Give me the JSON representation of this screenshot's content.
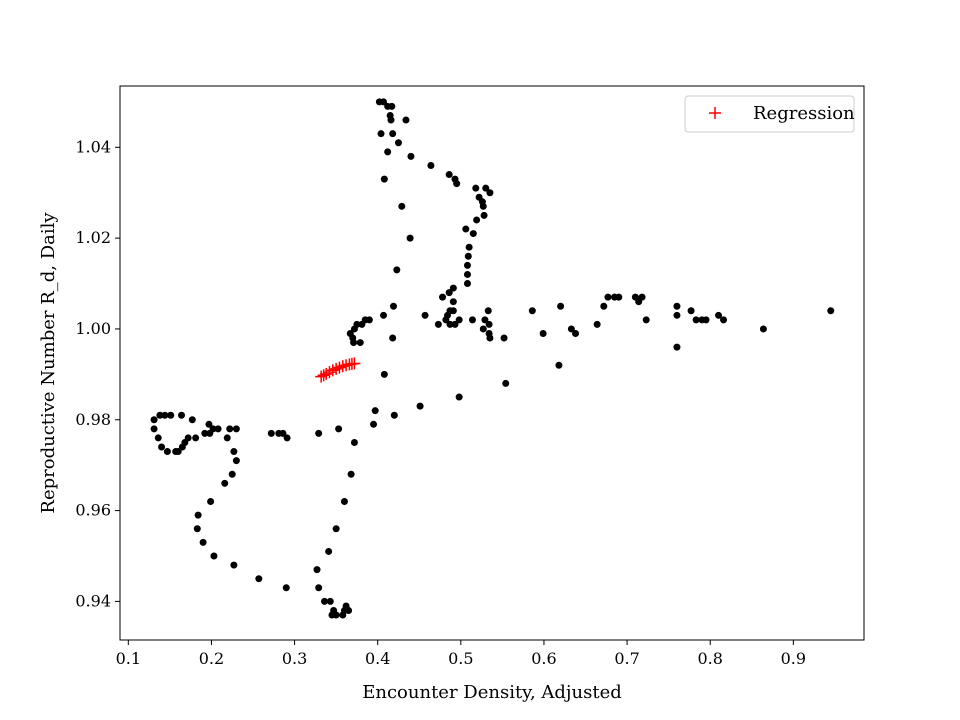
{
  "chart_data": {
    "type": "scatter",
    "xlabel": "Encounter Density, Adjusted",
    "ylabel": "Reproductive Number R_d, Daily",
    "xlim": [
      0.09,
      0.985
    ],
    "ylim": [
      0.9315,
      1.0535
    ],
    "xticks": [
      0.1,
      0.2,
      0.3,
      0.4,
      0.5,
      0.6,
      0.7,
      0.8,
      0.9
    ],
    "xtick_labels": [
      "0.1",
      "0.2",
      "0.3",
      "0.4",
      "0.5",
      "0.6",
      "0.7",
      "0.8",
      "0.9"
    ],
    "yticks": [
      0.94,
      0.96,
      0.98,
      1.0,
      1.02,
      1.04
    ],
    "ytick_labels": [
      "0.94",
      "0.96",
      "0.98",
      "1.00",
      "1.02",
      "1.04"
    ],
    "grid": false,
    "legend": {
      "position": "top-right",
      "entries": [
        "Regression"
      ]
    },
    "series": [
      {
        "marker": "dot",
        "color": "#000000",
        "points": [
          [
            0.402,
            1.05
          ],
          [
            0.407,
            1.05
          ],
          [
            0.412,
            1.049
          ],
          [
            0.417,
            1.049
          ],
          [
            0.415,
            1.047
          ],
          [
            0.416,
            1.046
          ],
          [
            0.434,
            1.046
          ],
          [
            0.404,
            1.043
          ],
          [
            0.418,
            1.043
          ],
          [
            0.425,
            1.041
          ],
          [
            0.412,
            1.039
          ],
          [
            0.44,
            1.038
          ],
          [
            0.464,
            1.036
          ],
          [
            0.486,
            1.034
          ],
          [
            0.493,
            1.033
          ],
          [
            0.495,
            1.032
          ],
          [
            0.408,
            1.033
          ],
          [
            0.518,
            1.031
          ],
          [
            0.53,
            1.031
          ],
          [
            0.535,
            1.03
          ],
          [
            0.522,
            1.029
          ],
          [
            0.526,
            1.028
          ],
          [
            0.527,
            1.027
          ],
          [
            0.429,
            1.027
          ],
          [
            0.528,
            1.025
          ],
          [
            0.519,
            1.024
          ],
          [
            0.506,
            1.022
          ],
          [
            0.515,
            1.021
          ],
          [
            0.439,
            1.02
          ],
          [
            0.51,
            1.018
          ],
          [
            0.509,
            1.016
          ],
          [
            0.508,
            1.014
          ],
          [
            0.423,
            1.013
          ],
          [
            0.508,
            1.012
          ],
          [
            0.508,
            1.01
          ],
          [
            0.491,
            1.009
          ],
          [
            0.486,
            1.008
          ],
          [
            0.478,
            1.007
          ],
          [
            0.491,
            1.006
          ],
          [
            0.491,
            1.004
          ],
          [
            0.419,
            1.005
          ],
          [
            0.457,
            1.003
          ],
          [
            0.407,
            1.003
          ],
          [
            0.39,
            1.002
          ],
          [
            0.385,
            1.002
          ],
          [
            0.381,
            1.001
          ],
          [
            0.375,
            1.001
          ],
          [
            0.372,
            1.0
          ],
          [
            0.367,
            0.999
          ],
          [
            0.37,
            0.998
          ],
          [
            0.371,
            0.997
          ],
          [
            0.379,
            0.997
          ],
          [
            0.418,
            0.998
          ],
          [
            0.473,
            1.001
          ],
          [
            0.482,
            1.002
          ],
          [
            0.487,
            1.001
          ],
          [
            0.493,
            1.001
          ],
          [
            0.498,
            1.002
          ],
          [
            0.484,
            1.003
          ],
          [
            0.487,
            1.004
          ],
          [
            0.514,
            1.002
          ],
          [
            0.529,
            1.002
          ],
          [
            0.534,
            1.001
          ],
          [
            0.533,
            1.004
          ],
          [
            0.527,
            1.0
          ],
          [
            0.534,
            0.999
          ],
          [
            0.535,
            0.998
          ],
          [
            0.552,
            0.998
          ],
          [
            0.586,
            1.004
          ],
          [
            0.599,
            0.999
          ],
          [
            0.62,
            1.005
          ],
          [
            0.633,
            1.0
          ],
          [
            0.638,
            0.999
          ],
          [
            0.664,
            1.001
          ],
          [
            0.672,
            1.005
          ],
          [
            0.677,
            1.007
          ],
          [
            0.685,
            1.007
          ],
          [
            0.69,
            1.007
          ],
          [
            0.71,
            1.007
          ],
          [
            0.714,
            1.006
          ],
          [
            0.718,
            1.007
          ],
          [
            0.723,
            1.002
          ],
          [
            0.76,
            1.005
          ],
          [
            0.76,
            1.003
          ],
          [
            0.777,
            1.004
          ],
          [
            0.783,
            1.002
          ],
          [
            0.79,
            1.002
          ],
          [
            0.795,
            1.002
          ],
          [
            0.81,
            1.003
          ],
          [
            0.816,
            1.002
          ],
          [
            0.76,
            0.996
          ],
          [
            0.864,
            1.0
          ],
          [
            0.945,
            1.004
          ],
          [
            0.618,
            0.992
          ],
          [
            0.554,
            0.988
          ],
          [
            0.498,
            0.985
          ],
          [
            0.451,
            0.983
          ],
          [
            0.42,
            0.981
          ],
          [
            0.397,
            0.982
          ],
          [
            0.395,
            0.979
          ],
          [
            0.408,
            0.99
          ],
          [
            0.353,
            0.978
          ],
          [
            0.329,
            0.977
          ],
          [
            0.372,
            0.975
          ],
          [
            0.368,
            0.968
          ],
          [
            0.36,
            0.962
          ],
          [
            0.35,
            0.956
          ],
          [
            0.341,
            0.951
          ],
          [
            0.327,
            0.947
          ],
          [
            0.329,
            0.943
          ],
          [
            0.336,
            0.94
          ],
          [
            0.343,
            0.94
          ],
          [
            0.347,
            0.938
          ],
          [
            0.345,
            0.937
          ],
          [
            0.35,
            0.937
          ],
          [
            0.358,
            0.937
          ],
          [
            0.36,
            0.938
          ],
          [
            0.365,
            0.938
          ],
          [
            0.362,
            0.939
          ],
          [
            0.29,
            0.943
          ],
          [
            0.257,
            0.945
          ],
          [
            0.227,
            0.948
          ],
          [
            0.203,
            0.95
          ],
          [
            0.19,
            0.953
          ],
          [
            0.183,
            0.956
          ],
          [
            0.184,
            0.959
          ],
          [
            0.199,
            0.962
          ],
          [
            0.216,
            0.966
          ],
          [
            0.225,
            0.968
          ],
          [
            0.23,
            0.971
          ],
          [
            0.227,
            0.973
          ],
          [
            0.219,
            0.976
          ],
          [
            0.23,
            0.978
          ],
          [
            0.222,
            0.978
          ],
          [
            0.208,
            0.978
          ],
          [
            0.202,
            0.978
          ],
          [
            0.197,
            0.979
          ],
          [
            0.198,
            0.977
          ],
          [
            0.192,
            0.977
          ],
          [
            0.181,
            0.976
          ],
          [
            0.172,
            0.976
          ],
          [
            0.168,
            0.975
          ],
          [
            0.165,
            0.974
          ],
          [
            0.16,
            0.973
          ],
          [
            0.157,
            0.973
          ],
          [
            0.147,
            0.973
          ],
          [
            0.14,
            0.974
          ],
          [
            0.136,
            0.976
          ],
          [
            0.131,
            0.978
          ],
          [
            0.131,
            0.98
          ],
          [
            0.138,
            0.981
          ],
          [
            0.144,
            0.981
          ],
          [
            0.151,
            0.981
          ],
          [
            0.164,
            0.981
          ],
          [
            0.177,
            0.98
          ],
          [
            0.272,
            0.977
          ],
          [
            0.281,
            0.977
          ],
          [
            0.291,
            0.976
          ],
          [
            0.286,
            0.977
          ]
        ]
      },
      {
        "name": "Regression",
        "marker": "plus",
        "color": "#ff0000",
        "points": [
          [
            0.332,
            0.9895
          ],
          [
            0.335,
            0.9898
          ],
          [
            0.338,
            0.9901
          ],
          [
            0.342,
            0.9905
          ],
          [
            0.346,
            0.9909
          ],
          [
            0.35,
            0.9912
          ],
          [
            0.354,
            0.9915
          ],
          [
            0.358,
            0.9918
          ],
          [
            0.362,
            0.992
          ],
          [
            0.366,
            0.9922
          ],
          [
            0.369,
            0.9923
          ],
          [
            0.372,
            0.9924
          ]
        ]
      }
    ]
  }
}
